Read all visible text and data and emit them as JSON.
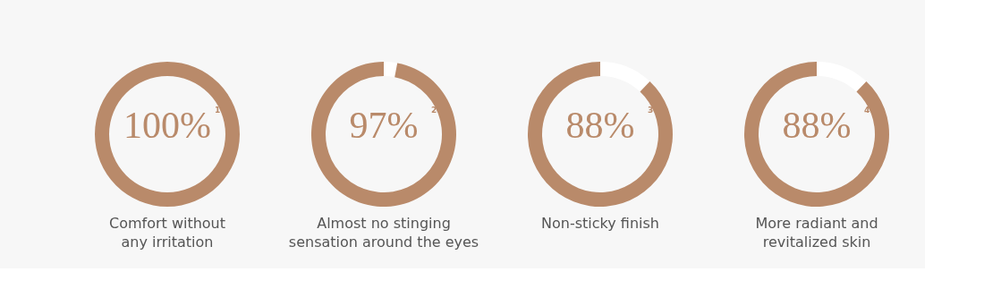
{
  "chart_data": [
    {
      "type": "donut",
      "title": "Comfort without\nany irritation",
      "categories": [
        null
      ],
      "values": [
        100
      ],
      "colors": [
        "#b98a6a"
      ],
      "value_labels": [
        "100%"
      ],
      "annotations": [
        "1"
      ]
    },
    {
      "type": "donut",
      "title": "Almost no stinging\nsensation around the eyes",
      "categories": [
        null,
        null
      ],
      "values": [
        3,
        97
      ],
      "colors": [
        "#ffffff",
        "#b98a6a"
      ],
      "value_labels": [
        null,
        "97%"
      ],
      "annotations": [
        "2"
      ]
    },
    {
      "type": "donut",
      "title": "Non-sticky finish",
      "categories": [
        null,
        null
      ],
      "values": [
        12,
        88
      ],
      "colors": [
        "#ffffff",
        "#b98a6a"
      ],
      "value_labels": [
        null,
        "88%"
      ],
      "annotations": [
        "3"
      ]
    },
    {
      "type": "donut",
      "title": "More radiant and\nrevitalized skin",
      "categories": [
        null,
        null
      ],
      "values": [
        12,
        88
      ],
      "colors": [
        "#ffffff",
        "#b98a6a"
      ],
      "value_labels": [
        null,
        "88%"
      ],
      "annotations": [
        "4"
      ]
    }
  ]
}
